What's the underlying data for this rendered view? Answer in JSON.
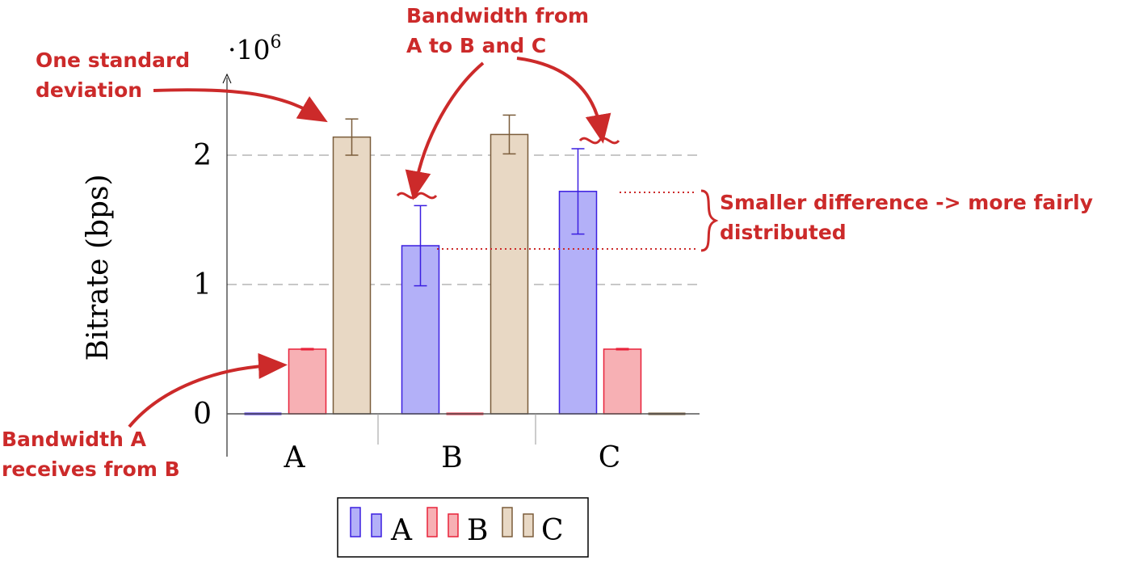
{
  "chart_data": {
    "type": "bar",
    "categories": [
      "A",
      "B",
      "C"
    ],
    "series": [
      {
        "name": "A",
        "values": [
          0,
          1300000,
          1720000
        ],
        "errors": [
          0,
          310000,
          330000
        ],
        "color": "#b3b0f8",
        "stroke": "#3b1ee0"
      },
      {
        "name": "B",
        "values": [
          500000,
          0,
          500000
        ],
        "errors": [
          5000,
          0,
          5000
        ],
        "color": "#f7b0b4",
        "stroke": "#e8223a"
      },
      {
        "name": "C",
        "values": [
          2140000,
          2160000,
          0
        ],
        "errors": [
          140000,
          150000,
          0
        ],
        "color": "#e8d8c4",
        "stroke": "#7a5c3a"
      }
    ],
    "ylabel": "Bitrate (bps)",
    "y_scale_label": "·10",
    "y_scale_exp": "6",
    "yticks": [
      0,
      1,
      2
    ],
    "yticks_scale": 1000000,
    "ylim": [
      -350000,
      2650000
    ],
    "grid": "horizontal dashed",
    "legend_position": "bottom-center"
  },
  "annotations": {
    "std_line1": "One standard",
    "std_line2": "deviation",
    "bw_line1": "Bandwidth from",
    "bw_line2": "A to B and C",
    "diff_line1": "Smaller difference -> more fairly",
    "diff_line2": "distributed",
    "recv_line1": "Bandwidth A",
    "recv_line2": "receives from B"
  },
  "colors": {
    "annotation": "#cc2a2a",
    "grid": "#b5b5b5"
  }
}
